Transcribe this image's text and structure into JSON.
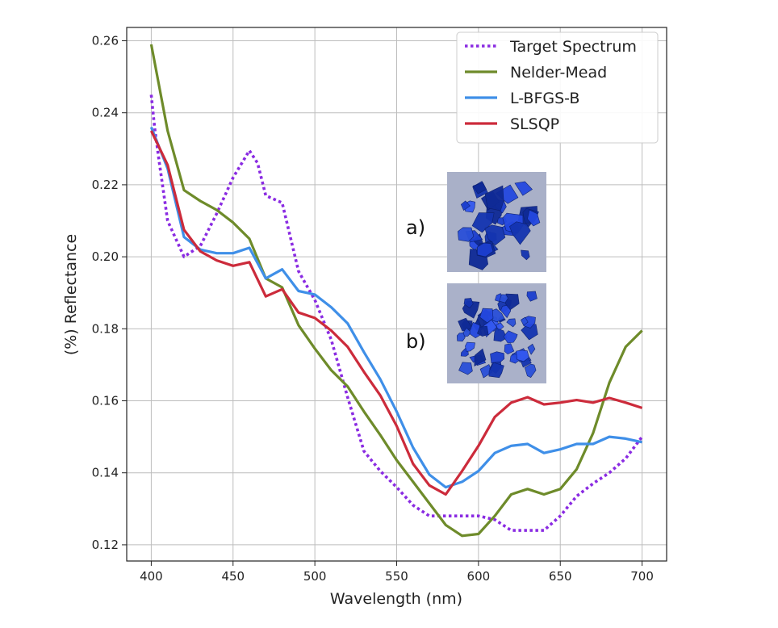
{
  "chart_data": {
    "type": "line",
    "title": "",
    "xlabel": "Wavelength (nm)",
    "ylabel": "(%) Reflectance",
    "xlim": [
      385,
      715
    ],
    "ylim": [
      0.1155,
      0.2637
    ],
    "xticks": [
      400,
      450,
      500,
      550,
      600,
      650,
      700
    ],
    "yticks": [
      0.12,
      0.14,
      0.16,
      0.18,
      0.2,
      0.22,
      0.24,
      0.26
    ],
    "ytick_labels": [
      "0.12",
      "0.14",
      "0.16",
      "0.18",
      "0.20",
      "0.22",
      "0.24",
      "0.26"
    ],
    "grid": true,
    "legend_position": "top-right",
    "series": [
      {
        "name": "Target Spectrum",
        "color": "#8a2be2",
        "style": "dotted",
        "x": [
          400,
          402,
          405,
          410,
          420,
          430,
          440,
          450,
          460,
          465,
          470,
          480,
          490,
          500,
          510,
          520,
          530,
          540,
          550,
          560,
          570,
          580,
          590,
          600,
          610,
          620,
          630,
          640,
          650,
          660,
          670,
          680,
          690,
          700
        ],
        "y": [
          0.245,
          0.236,
          0.226,
          0.21,
          0.2,
          0.203,
          0.212,
          0.222,
          0.2295,
          0.226,
          0.217,
          0.215,
          0.196,
          0.188,
          0.177,
          0.161,
          0.146,
          0.1405,
          0.136,
          0.131,
          0.128,
          0.128,
          0.128,
          0.128,
          0.127,
          0.124,
          0.124,
          0.124,
          0.128,
          0.1335,
          0.137,
          0.14,
          0.144,
          0.15
        ]
      },
      {
        "name": "Nelder-Mead",
        "color": "#6e8b2a",
        "style": "solid",
        "x": [
          400,
          410,
          420,
          430,
          440,
          450,
          460,
          470,
          480,
          490,
          500,
          510,
          520,
          530,
          540,
          550,
          560,
          570,
          580,
          590,
          600,
          610,
          620,
          630,
          640,
          650,
          660,
          670,
          680,
          690,
          700
        ],
        "y": [
          0.259,
          0.235,
          0.2185,
          0.2155,
          0.213,
          0.2095,
          0.205,
          0.194,
          0.1915,
          0.181,
          0.1745,
          0.1685,
          0.164,
          0.157,
          0.1505,
          0.1435,
          0.1375,
          0.1315,
          0.1255,
          0.1225,
          0.123,
          0.128,
          0.134,
          0.1355,
          0.134,
          0.1355,
          0.141,
          0.151,
          0.165,
          0.175,
          0.1795
        ]
      },
      {
        "name": "L-BFGS-B",
        "color": "#3f8fe8",
        "style": "solid",
        "x": [
          400,
          410,
          420,
          430,
          440,
          450,
          460,
          470,
          480,
          490,
          500,
          510,
          520,
          530,
          540,
          550,
          560,
          570,
          580,
          590,
          600,
          610,
          620,
          630,
          640,
          650,
          660,
          670,
          680,
          690,
          700
        ],
        "y": [
          0.236,
          0.2245,
          0.2055,
          0.202,
          0.201,
          0.201,
          0.2025,
          0.194,
          0.1965,
          0.1905,
          0.1895,
          0.186,
          0.1815,
          0.1735,
          0.166,
          0.157,
          0.147,
          0.1395,
          0.136,
          0.1375,
          0.1405,
          0.1455,
          0.1475,
          0.148,
          0.1455,
          0.1465,
          0.148,
          0.148,
          0.15,
          0.1495,
          0.1485
        ]
      },
      {
        "name": "SLSQP",
        "color": "#cc2b3b",
        "style": "solid",
        "x": [
          400,
          410,
          420,
          430,
          440,
          450,
          460,
          470,
          480,
          490,
          500,
          510,
          520,
          530,
          540,
          550,
          560,
          570,
          580,
          590,
          600,
          610,
          620,
          630,
          640,
          650,
          660,
          670,
          680,
          690,
          700
        ],
        "y": [
          0.235,
          0.2255,
          0.2075,
          0.2015,
          0.199,
          0.1975,
          0.1985,
          0.189,
          0.191,
          0.1845,
          0.183,
          0.1795,
          0.175,
          0.168,
          0.1615,
          0.153,
          0.1425,
          0.1365,
          0.134,
          0.1405,
          0.1475,
          0.1555,
          0.1595,
          0.161,
          0.159,
          0.1595,
          0.1602,
          0.1595,
          0.1608,
          0.1595,
          0.158
        ]
      }
    ],
    "insets": [
      {
        "label": "a)",
        "description_icon": "blue-crystal-photo-a"
      },
      {
        "label": "b)",
        "description_icon": "blue-crystal-photo-b"
      }
    ]
  }
}
